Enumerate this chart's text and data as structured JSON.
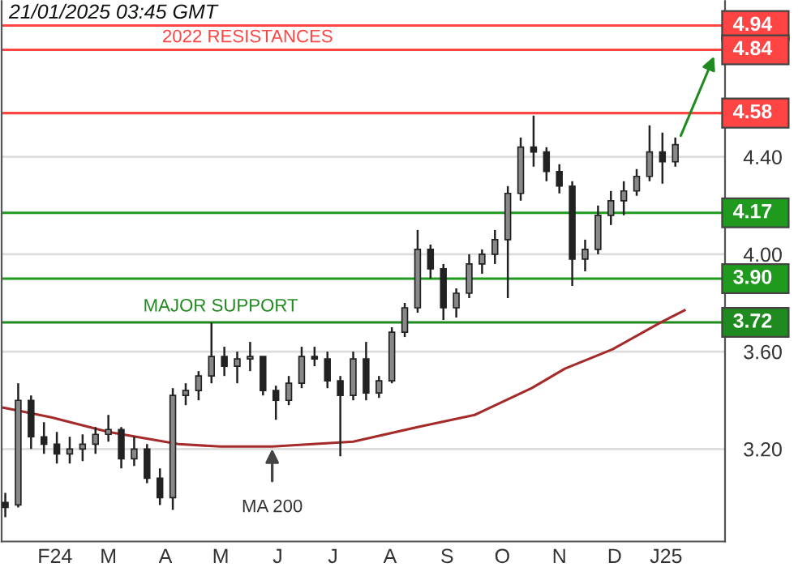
{
  "chart_data": {
    "type": "candlestick",
    "x": [
      "2024-01-19",
      "2024-01-26",
      "2024-02-02",
      "2024-02-09",
      "2024-02-16",
      "2024-02-23",
      "2024-03-01",
      "2024-03-08",
      "2024-03-15",
      "2024-03-22",
      "2024-03-29",
      "2024-04-05",
      "2024-04-12",
      "2024-04-19",
      "2024-04-26",
      "2024-05-03",
      "2024-05-10",
      "2024-05-17",
      "2024-05-24",
      "2024-05-31",
      "2024-06-07",
      "2024-06-14",
      "2024-06-21",
      "2024-06-28",
      "2024-07-05",
      "2024-07-12",
      "2024-07-19",
      "2024-07-26",
      "2024-08-02",
      "2024-08-09",
      "2024-08-16",
      "2024-08-23",
      "2024-08-30",
      "2024-09-06",
      "2024-09-13",
      "2024-09-20",
      "2024-09-27",
      "2024-10-04",
      "2024-10-11",
      "2024-10-18",
      "2024-10-25",
      "2024-11-01",
      "2024-11-08",
      "2024-11-15",
      "2024-11-22",
      "2024-11-29",
      "2024-12-06",
      "2024-12-13",
      "2024-12-20",
      "2024-12-27",
      "2025-01-03",
      "2025-01-10",
      "2025-01-17"
    ],
    "ohlc": [
      [
        2.98,
        3.02,
        2.92,
        2.96
      ],
      [
        2.97,
        3.47,
        2.96,
        3.4
      ],
      [
        3.4,
        3.42,
        3.2,
        3.25
      ],
      [
        3.25,
        3.31,
        3.18,
        3.22
      ],
      [
        3.22,
        3.27,
        3.14,
        3.18
      ],
      [
        3.18,
        3.25,
        3.14,
        3.2
      ],
      [
        3.2,
        3.26,
        3.15,
        3.22
      ],
      [
        3.22,
        3.29,
        3.18,
        3.26
      ],
      [
        3.26,
        3.34,
        3.23,
        3.28
      ],
      [
        3.28,
        3.29,
        3.12,
        3.16
      ],
      [
        3.16,
        3.25,
        3.13,
        3.2
      ],
      [
        3.2,
        3.22,
        3.06,
        3.08
      ],
      [
        3.08,
        3.12,
        2.97,
        3.0
      ],
      [
        3.0,
        3.45,
        2.95,
        3.42
      ],
      [
        3.42,
        3.47,
        3.38,
        3.44
      ],
      [
        3.44,
        3.52,
        3.4,
        3.5
      ],
      [
        3.5,
        3.72,
        3.47,
        3.58
      ],
      [
        3.58,
        3.62,
        3.5,
        3.54
      ],
      [
        3.54,
        3.6,
        3.47,
        3.57
      ],
      [
        3.57,
        3.64,
        3.52,
        3.58
      ],
      [
        3.58,
        3.58,
        3.42,
        3.44
      ],
      [
        3.44,
        3.46,
        3.32,
        3.4
      ],
      [
        3.4,
        3.5,
        3.38,
        3.47
      ],
      [
        3.47,
        3.62,
        3.45,
        3.58
      ],
      [
        3.58,
        3.62,
        3.54,
        3.57
      ],
      [
        3.57,
        3.6,
        3.45,
        3.48
      ],
      [
        3.48,
        3.5,
        3.17,
        3.42
      ],
      [
        3.42,
        3.6,
        3.4,
        3.57
      ],
      [
        3.57,
        3.64,
        3.4,
        3.43
      ],
      [
        3.43,
        3.5,
        3.41,
        3.48
      ],
      [
        3.48,
        3.7,
        3.47,
        3.68
      ],
      [
        3.68,
        3.8,
        3.66,
        3.78
      ],
      [
        3.78,
        4.1,
        3.76,
        4.02
      ],
      [
        4.02,
        4.04,
        3.9,
        3.94
      ],
      [
        3.94,
        3.96,
        3.73,
        3.78
      ],
      [
        3.78,
        3.86,
        3.74,
        3.84
      ],
      [
        3.84,
        4.0,
        3.82,
        3.96
      ],
      [
        3.96,
        4.02,
        3.92,
        4.0
      ],
      [
        4.0,
        4.1,
        3.96,
        4.06
      ],
      [
        4.06,
        4.28,
        3.82,
        4.25
      ],
      [
        4.25,
        4.48,
        4.22,
        4.44
      ],
      [
        4.44,
        4.57,
        4.36,
        4.42
      ],
      [
        4.42,
        4.44,
        4.3,
        4.34
      ],
      [
        4.34,
        4.37,
        4.25,
        4.28
      ],
      [
        4.28,
        4.3,
        3.87,
        3.98
      ],
      [
        3.98,
        4.06,
        3.93,
        4.02
      ],
      [
        4.02,
        4.2,
        4.0,
        4.16
      ],
      [
        4.16,
        4.26,
        4.12,
        4.22
      ],
      [
        4.22,
        4.3,
        4.16,
        4.26
      ],
      [
        4.26,
        4.35,
        4.24,
        4.32
      ],
      [
        4.32,
        4.53,
        4.3,
        4.42
      ],
      [
        4.42,
        4.5,
        4.29,
        4.38
      ],
      [
        4.38,
        4.48,
        4.36,
        4.45
      ]
    ],
    "series": [
      {
        "type": "line",
        "color": "#a52a2a",
        "x": [
          "2024-01-18",
          "2024-02-13",
          "2024-03-15",
          "2024-04-22",
          "2024-05-15",
          "2024-06-12",
          "2024-07-26",
          "2024-08-30",
          "2024-09-30",
          "2024-10-31",
          "2024-11-18",
          "2024-12-14",
          "2025-01-09",
          "2025-01-22"
        ],
        "values": [
          3.37,
          3.33,
          3.27,
          3.22,
          3.21,
          3.21,
          3.23,
          3.29,
          3.34,
          3.45,
          3.53,
          3.61,
          3.72,
          3.77
        ]
      }
    ],
    "xlim": [
      "2024-01-17",
      "2025-02-13"
    ],
    "xticks": [
      {
        "value": "2024-02-15",
        "label": "F24"
      },
      {
        "value": "2024-03-15",
        "label": "M"
      },
      {
        "value": "2024-04-15",
        "label": "A"
      },
      {
        "value": "2024-05-15",
        "label": "M"
      },
      {
        "value": "2024-06-15",
        "label": "J"
      },
      {
        "value": "2024-07-15",
        "label": "J"
      },
      {
        "value": "2024-08-15",
        "label": "A"
      },
      {
        "value": "2024-09-15",
        "label": "S"
      },
      {
        "value": "2024-10-15",
        "label": "O"
      },
      {
        "value": "2024-11-15",
        "label": "N"
      },
      {
        "value": "2024-12-15",
        "label": "D"
      },
      {
        "value": "2025-01-12",
        "label": "J25"
      }
    ],
    "ylim": [
      2.82,
      5.04
    ],
    "yticks": [
      {
        "value": 3.2,
        "label": "3.20"
      },
      {
        "value": 3.6,
        "label": "3.60"
      },
      {
        "value": 4.0,
        "label": "4.00"
      },
      {
        "value": 4.4,
        "label": "4.40"
      }
    ],
    "grid": "y",
    "ref_lines": [
      {
        "axis": "y",
        "value": 4.94,
        "label": "4.94",
        "color": "#ff4444"
      },
      {
        "axis": "y",
        "value": 4.84,
        "label": "4.84",
        "color": "#ff4444"
      },
      {
        "axis": "y",
        "value": 4.58,
        "label": "4.58",
        "color": "#ff4444"
      },
      {
        "axis": "y",
        "value": 4.17,
        "label": "4.17",
        "color": "#1f9a1f"
      },
      {
        "axis": "y",
        "value": 3.9,
        "label": "3.90",
        "color": "#1f9a1f"
      },
      {
        "axis": "y",
        "value": 3.72,
        "label": "3.72",
        "color": "#1f8a1f"
      }
    ],
    "annotations": [
      "21/01/2025 03:45 GMT",
      "2022 RESISTANCES",
      {
        "text": "MAJOR SUPPORT",
        "x": "2024-05-15",
        "y": 3.72
      },
      {
        "text": "MA 200",
        "x": "2024-06-12",
        "y": 3.21
      }
    ],
    "legend": false
  }
}
